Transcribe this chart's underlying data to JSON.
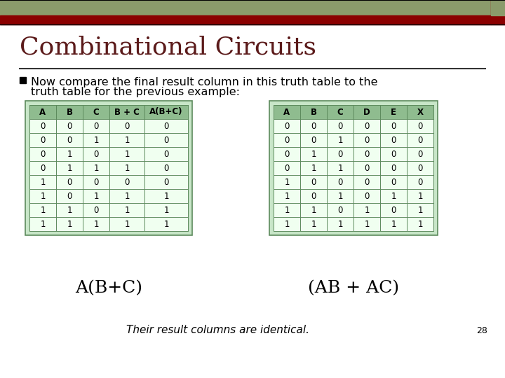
{
  "title": "Combinational Circuits",
  "title_color": "#5B1A1A",
  "title_fontsize": 26,
  "bullet_text_line1": "Now compare the final result column in this truth table to the",
  "bullet_text_line2": "truth table for the previous example:",
  "bullet_fontsize": 11.5,
  "bullet_color": "#000000",
  "bullet_marker": "■",
  "header_olive": "#8B9B6B",
  "accent_red": "#8B0000",
  "slide_bg": "#FFFFFF",
  "table1_headers": [
    "A",
    "B",
    "C",
    "B + C",
    "A(B+C)"
  ],
  "table1_data": [
    [
      0,
      0,
      0,
      0,
      0
    ],
    [
      0,
      0,
      1,
      1,
      0
    ],
    [
      0,
      1,
      0,
      1,
      0
    ],
    [
      0,
      1,
      1,
      1,
      0
    ],
    [
      1,
      0,
      0,
      0,
      0
    ],
    [
      1,
      0,
      1,
      1,
      1
    ],
    [
      1,
      1,
      0,
      1,
      1
    ],
    [
      1,
      1,
      1,
      1,
      1
    ]
  ],
  "table2_headers": [
    "A",
    "B",
    "C",
    "D",
    "E",
    "X"
  ],
  "table2_data": [
    [
      0,
      0,
      0,
      0,
      0,
      0
    ],
    [
      0,
      0,
      1,
      0,
      0,
      0
    ],
    [
      0,
      1,
      0,
      0,
      0,
      0
    ],
    [
      0,
      1,
      1,
      0,
      0,
      0
    ],
    [
      1,
      0,
      0,
      0,
      0,
      0
    ],
    [
      1,
      0,
      1,
      0,
      1,
      1
    ],
    [
      1,
      1,
      0,
      1,
      0,
      1
    ],
    [
      1,
      1,
      1,
      1,
      1,
      1
    ]
  ],
  "table_header_bg": "#8FBC8F",
  "table_row_bg": "#F0FFF0",
  "table_outer_bg": "#C8E6C8",
  "table_border_color": "#5C8A5C",
  "table_header_text_color": "#000000",
  "table_data_text_color": "#000000",
  "label1": "A(B+C)",
  "label2": "(AB + AC)",
  "label_fontsize": 18,
  "footer_text": "Their result columns are identical.",
  "footer_fontsize": 11,
  "page_num": "28",
  "page_num_fontsize": 9
}
